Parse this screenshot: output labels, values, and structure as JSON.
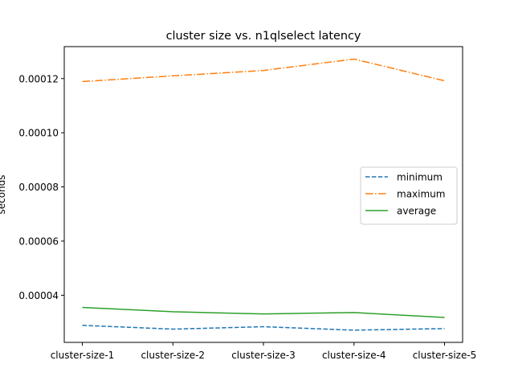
{
  "chart_data": {
    "type": "line",
    "title": "cluster size vs. n1qlselect latency",
    "xlabel": "",
    "ylabel": "seconds",
    "categories": [
      "cluster-size-1",
      "cluster-size-2",
      "cluster-size-3",
      "cluster-size-4",
      "cluster-size-5"
    ],
    "ylim": [
      2.26e-05,
      0.0001318
    ],
    "yticks": [
      4e-05,
      6e-05,
      8e-05,
      0.0001,
      0.00012
    ],
    "ytick_labels": [
      "0.00004",
      "0.00006",
      "0.00008",
      "0.00010",
      "0.00012"
    ],
    "grid": false,
    "legend_position": "center-right",
    "series": [
      {
        "name": "minimum",
        "values": [
          2.89e-05,
          2.75e-05,
          2.84e-05,
          2.71e-05,
          2.77e-05
        ],
        "color": "#1f77b4",
        "linestyle": "dashed"
      },
      {
        "name": "maximum",
        "values": [
          0.0001189,
          0.000121,
          0.000123,
          0.0001272,
          0.0001192
        ],
        "color": "#ff7f0e",
        "linestyle": "dashdot"
      },
      {
        "name": "average",
        "values": [
          3.55e-05,
          3.39e-05,
          3.31e-05,
          3.36e-05,
          3.18e-05
        ],
        "color": "#2ca02c",
        "linestyle": "solid"
      }
    ]
  }
}
